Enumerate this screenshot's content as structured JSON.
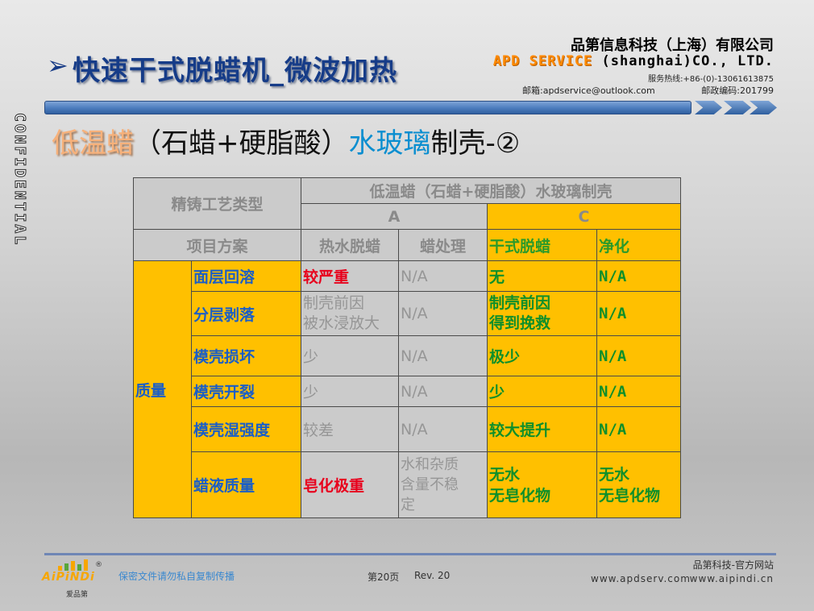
{
  "header": {
    "bullet": "➢",
    "title": "快速干式脱蜡机_微波加热",
    "company_cn": "品第信息科技（上海）有限公司",
    "company_en_brand": "APD SERVICE",
    "company_en_rest": "(shanghai)CO., LTD.",
    "hotline": "服务热线:+86-(0)-13061613875",
    "email": "邮箱:apdservice@outlook.com",
    "zipcode": "邮政编码:201799"
  },
  "confidential": "CONFIDENTIAL",
  "subtitle": {
    "part1": "低温蜡",
    "part2": "（石蜡+硬脂酸）",
    "part3": "水玻璃",
    "part4": "制壳-②"
  },
  "table": {
    "process_type": "精铸工艺类型",
    "main_header": "低温蜡（石蜡+硬脂酸）水玻璃制壳",
    "group_a": "A",
    "group_c": "C",
    "project_plan": "项目方案",
    "col_hot_water": "热水脱蜡",
    "col_wax_treat": "蜡处理",
    "col_dry": "干式脱蜡",
    "col_purify": "净化",
    "category": "质量",
    "rows": [
      {
        "item": "面层回溶",
        "hot": "较严重",
        "wax": "N/A",
        "dry": "无",
        "purify": "N/A"
      },
      {
        "item": "分层剥落",
        "hot": "制壳前因\n被水浸放大",
        "wax": "N/A",
        "dry": "制壳前因\n得到挽救",
        "purify": "N/A"
      },
      {
        "item": "模壳损坏",
        "hot": "少",
        "wax": "N/A",
        "dry": "极少",
        "purify": "N/A"
      },
      {
        "item": "模壳开裂",
        "hot": "少",
        "wax": "N/A",
        "dry": "少",
        "purify": "N/A"
      },
      {
        "item": "模壳湿强度",
        "hot": "较差",
        "wax": "N/A",
        "dry": "较大提升",
        "purify": "N/A"
      },
      {
        "item": "蜡液质量",
        "hot": "皂化极重",
        "wax": "水和杂质\n含量不稳\n定",
        "dry": "无水\n无皂化物",
        "purify": "无水\n无皂化物"
      }
    ]
  },
  "footer": {
    "logo": "AiPiNDi",
    "logo_reg": "®",
    "logo_sub": "爱品第",
    "secret_notice": "保密文件请勿私自复制传播",
    "page": "第20页",
    "rev": "Rev. 20",
    "site_title": "品第科技-官方网站",
    "url1": "www.apdserv.com",
    "url2": "www.aipindi.cn"
  },
  "colors": {
    "title_blue": "#163c88",
    "table_yellow": "#ffc000",
    "table_grey": "#cbcbcb",
    "green_text": "#0e8f2a",
    "red_text": "#e8001c",
    "item_blue": "#1a5ec7"
  }
}
